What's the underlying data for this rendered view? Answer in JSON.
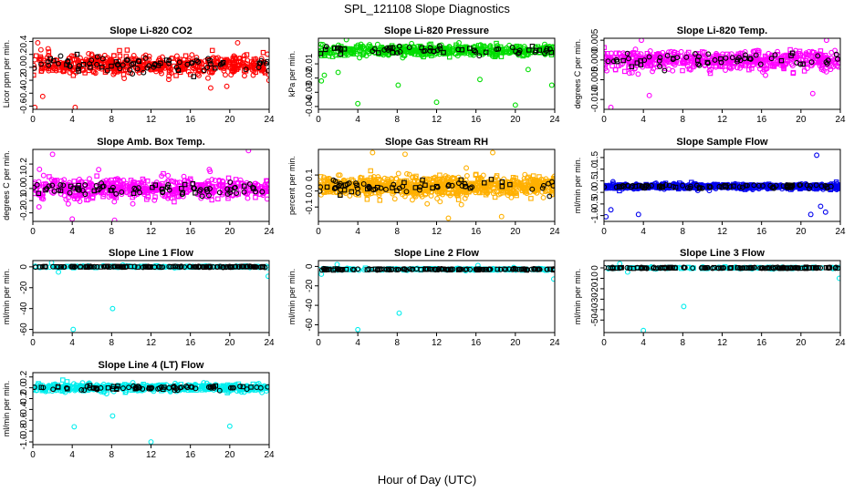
{
  "figure": {
    "title": "SPL_121108  Slope Diagnostics",
    "xlabel": "Hour of Day (UTC)",
    "xticks": [
      "0",
      "4",
      "8",
      "12",
      "16",
      "20",
      "24"
    ]
  },
  "chart_data": [
    {
      "type": "scatter",
      "title": "Slope Li-820 CO2",
      "ylabel": "Licor ppm per min.",
      "color": "#ff0000",
      "xlim": [
        0,
        24
      ],
      "ylim": [
        -0.65,
        0.45
      ],
      "yticks": [
        -0.6,
        -0.4,
        -0.2,
        0.0,
        0.2,
        0.4
      ],
      "ytick_labels": [
        "-0.6",
        "-0.4",
        "-0.2",
        "0.0",
        "0.2",
        "0.4"
      ],
      "band_center": 0.04,
      "band_spread": 0.32,
      "colored_point_count": 520,
      "black_point_count": 80,
      "outliers": [
        [
          0.2,
          -0.62
        ],
        [
          0.5,
          0.38
        ],
        [
          1.0,
          -0.45
        ],
        [
          4.3,
          -0.62
        ],
        [
          20.8,
          0.38
        ]
      ]
    },
    {
      "type": "scatter",
      "title": "Slope Li-820 Pressure",
      "ylabel": "kPa per min.",
      "color": "#00dd00",
      "xlim": [
        0,
        24
      ],
      "ylim": [
        -0.042,
        0.008
      ],
      "yticks": [
        -0.04,
        -0.03,
        -0.02,
        -0.01
      ],
      "ytick_labels": [
        "-0.04",
        "-0.03",
        "-0.02",
        "-0.01"
      ],
      "band_center": -0.0005,
      "band_spread": 0.008,
      "colored_point_count": 520,
      "black_point_count": 60,
      "outliers": [
        [
          0.3,
          -0.022
        ],
        [
          0.6,
          -0.018
        ],
        [
          4.0,
          -0.038
        ],
        [
          8.1,
          -0.025
        ],
        [
          12.0,
          -0.037
        ],
        [
          16.4,
          -0.021
        ],
        [
          20.0,
          -0.039
        ],
        [
          23.7,
          -0.025
        ],
        [
          2.0,
          -0.016
        ],
        [
          21.3,
          -0.014
        ]
      ]
    },
    {
      "type": "scatter",
      "title": "Slope Li-820 Temp.",
      "ylabel": "degrees C per min.",
      "color": "#ff00ff",
      "xlim": [
        0,
        24
      ],
      "ylim": [
        -0.0125,
        0.0055
      ],
      "yticks": [
        -0.01,
        -0.005,
        0.0,
        0.005
      ],
      "ytick_labels": [
        "-0.010",
        "-0.005",
        "0.000",
        "0.005"
      ],
      "band_center": 0.0,
      "band_spread": 0.005,
      "colored_point_count": 560,
      "black_point_count": 60,
      "outliers": [
        [
          0.7,
          -0.012
        ],
        [
          3.8,
          0.005
        ],
        [
          4.6,
          -0.009
        ],
        [
          21.2,
          -0.0085
        ],
        [
          22.6,
          0.005
        ]
      ]
    },
    {
      "type": "scatter",
      "title": "Slope Amb. Box Temp.",
      "ylabel": "degrees C per min.",
      "color": "#ff00ff",
      "xlim": [
        0,
        24
      ],
      "ylim": [
        -0.27,
        0.32
      ],
      "yticks": [
        -0.2,
        -0.1,
        0.0,
        0.1,
        0.2
      ],
      "ytick_labels": [
        "-0.2",
        "-0.1",
        "0.0",
        "0.1",
        "0.2"
      ],
      "band_center": 0.0,
      "band_spread": 0.17,
      "colored_point_count": 560,
      "black_point_count": 80,
      "outliers": [
        [
          2.0,
          0.28
        ],
        [
          4.0,
          -0.25
        ],
        [
          8.3,
          -0.26
        ],
        [
          21.9,
          0.31
        ]
      ]
    },
    {
      "type": "scatter",
      "title": "Slope Gas Stream RH",
      "ylabel": "percent per min.",
      "color": "#ffb000",
      "xlim": [
        0,
        24
      ],
      "ylim": [
        -0.19,
        0.26
      ],
      "yticks": [
        -0.1,
        0.0,
        0.1
      ],
      "ytick_labels": [
        "-0.1",
        "0.0",
        "0.1"
      ],
      "band_center": 0.03,
      "band_spread": 0.12,
      "colored_point_count": 900,
      "black_point_count": 70,
      "outliers": [
        [
          5.5,
          0.24
        ],
        [
          8.8,
          0.23
        ],
        [
          17.7,
          0.24
        ],
        [
          13.2,
          -0.17
        ],
        [
          18.6,
          -0.16
        ]
      ]
    },
    {
      "type": "scatter",
      "title": "Slope Sample Flow",
      "ylabel": "ml/min per min.",
      "color": "#0000ee",
      "xlim": [
        0,
        24
      ],
      "ylim": [
        -1.25,
        1.85
      ],
      "yticks": [
        -1.0,
        -0.5,
        0.0,
        0.5,
        1.0,
        1.5
      ],
      "ytick_labels": [
        "-1.0",
        "-0.5",
        "0.0",
        "0.5",
        "1.0",
        "1.5"
      ],
      "band_center": 0.25,
      "band_spread": 0.22,
      "colored_point_count": 620,
      "black_point_count": 80,
      "outliers": [
        [
          0.2,
          -1.05
        ],
        [
          0.7,
          -0.75
        ],
        [
          3.5,
          -0.95
        ],
        [
          21.6,
          1.6
        ],
        [
          21.0,
          -0.95
        ],
        [
          22.5,
          -0.85
        ],
        [
          22.0,
          -0.6
        ]
      ]
    },
    {
      "type": "scatter",
      "title": "Slope Line 1 Flow",
      "ylabel": "ml/min per min.",
      "color": "#00eeee",
      "xlim": [
        0,
        24
      ],
      "ylim": [
        -63,
        6
      ],
      "yticks": [
        -60,
        -40,
        -20,
        0
      ],
      "ytick_labels": [
        "-60",
        "-40",
        "-20",
        "0"
      ],
      "band_center": 0,
      "band_spread": 1.5,
      "colored_point_count": 180,
      "black_point_count": 140,
      "outliers": [
        [
          4.1,
          -60
        ],
        [
          8.1,
          -40
        ],
        [
          23.9,
          -9
        ],
        [
          1.9,
          4
        ],
        [
          2.6,
          -5
        ]
      ]
    },
    {
      "type": "scatter",
      "title": "Slope Line 2 Flow",
      "ylabel": "ml/min per min.",
      "color": "#00eeee",
      "xlim": [
        0,
        24
      ],
      "ylim": [
        -68,
        6
      ],
      "yticks": [
        -60,
        -40,
        -20,
        0
      ],
      "ytick_labels": [
        "-60",
        "-40",
        "-20",
        "0"
      ],
      "band_center": -3,
      "band_spread": 2,
      "colored_point_count": 180,
      "black_point_count": 140,
      "outliers": [
        [
          4.0,
          -65
        ],
        [
          8.2,
          -48
        ],
        [
          23.9,
          -13
        ],
        [
          0.3,
          -8
        ],
        [
          1.9,
          2
        ],
        [
          16.2,
          1
        ]
      ]
    },
    {
      "type": "scatter",
      "title": "Slope Line 3 Flow",
      "ylabel": "ml/min per min.",
      "color": "#00eeee",
      "xlim": [
        0,
        24
      ],
      "ylim": [
        -62,
        7
      ],
      "yticks": [
        -50,
        -40,
        -30,
        -20,
        -10,
        0
      ],
      "ytick_labels": [
        "-50",
        "-40",
        "-30",
        "-20",
        "-10",
        "0"
      ],
      "band_center": 0,
      "band_spread": 1.5,
      "colored_point_count": 180,
      "black_point_count": 140,
      "outliers": [
        [
          4.0,
          -60
        ],
        [
          8.1,
          -37
        ],
        [
          23.9,
          -10
        ],
        [
          1.6,
          4
        ],
        [
          2.4,
          -4
        ]
      ]
    },
    {
      "type": "scatter",
      "title": "Slope Line 4 (LT) Flow",
      "ylabel": "ml/min per min.",
      "color": "#00eeee",
      "xlim": [
        0,
        24
      ],
      "ylim": [
        -1.05,
        0.28
      ],
      "yticks": [
        -1.0,
        -0.8,
        -0.6,
        -0.4,
        -0.2,
        0.0,
        0.2
      ],
      "ytick_labels": [
        "-1.0",
        "-0.8",
        "-0.6",
        "-0.4",
        "-0.2",
        "0.0",
        "0.2"
      ],
      "band_center": 0.0,
      "band_spread": 0.13,
      "colored_point_count": 520,
      "black_point_count": 80,
      "outliers": [
        [
          4.2,
          -0.72
        ],
        [
          8.1,
          -0.52
        ],
        [
          12.0,
          -1.0
        ],
        [
          20.0,
          -0.71
        ]
      ]
    }
  ]
}
